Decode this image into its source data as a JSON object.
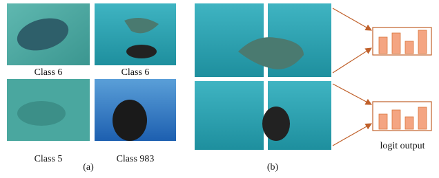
{
  "panel_a": {
    "captions": [
      "Class 6",
      "Class 6",
      "Class 5",
      "Class 983"
    ],
    "label": "(a)"
  },
  "panel_b": {
    "label": "(b)",
    "output_label": "logit output",
    "logit_charts": [
      {
        "values": [
          0.6,
          0.75,
          0.45,
          0.85
        ]
      },
      {
        "values": [
          0.55,
          0.7,
          0.45,
          0.8
        ]
      }
    ]
  }
}
